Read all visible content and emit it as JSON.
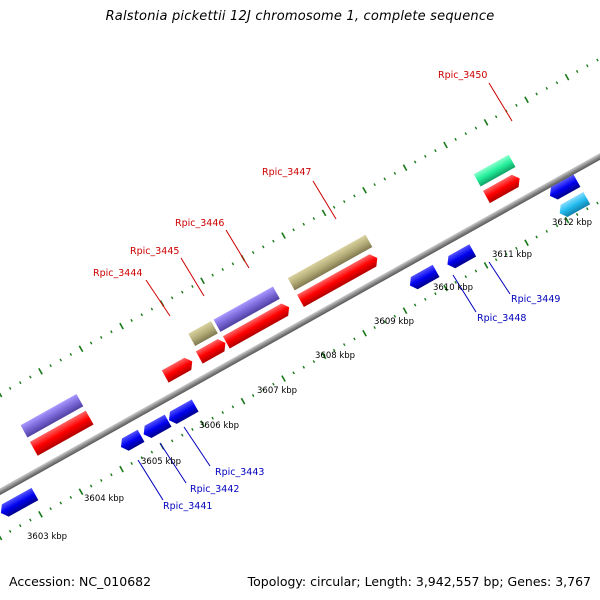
{
  "title": "Ralstonia pickettii 12J chromosome 1, complete sequence",
  "footer": {
    "accession": "Accession: NC_010682",
    "summary": "Topology: circular; Length: 3,942,557 bp; Genes: 3,767"
  },
  "colors": {
    "backbone": "#8c8c8c",
    "forward_cds": "#ff0000",
    "reverse_cds": "#0000ee",
    "label_forward": "#cc0000",
    "label_reverse": "#0000bb",
    "tick": "#1a7a1a",
    "purple_feature": "#7b68d8",
    "olive_feature": "#b5ad78",
    "green_feature": "#22ee99",
    "cyan_feature": "#22bbee"
  },
  "tick_labels": [
    "3603 kbp",
    "3604 kbp",
    "3605 kbp",
    "3606 kbp",
    "3607 kbp",
    "3608 kbp",
    "3609 kbp",
    "3610 kbp",
    "3611 kbp",
    "3612 kbp"
  ],
  "gene_labels_forward": [
    "Rpic_3444",
    "Rpic_3445",
    "Rpic_3446",
    "Rpic_3447",
    "Rpic_3450"
  ],
  "gene_labels_reverse": [
    "Rpic_3441",
    "Rpic_3442",
    "Rpic_3443",
    "Rpic_3448",
    "Rpic_3449"
  ]
}
